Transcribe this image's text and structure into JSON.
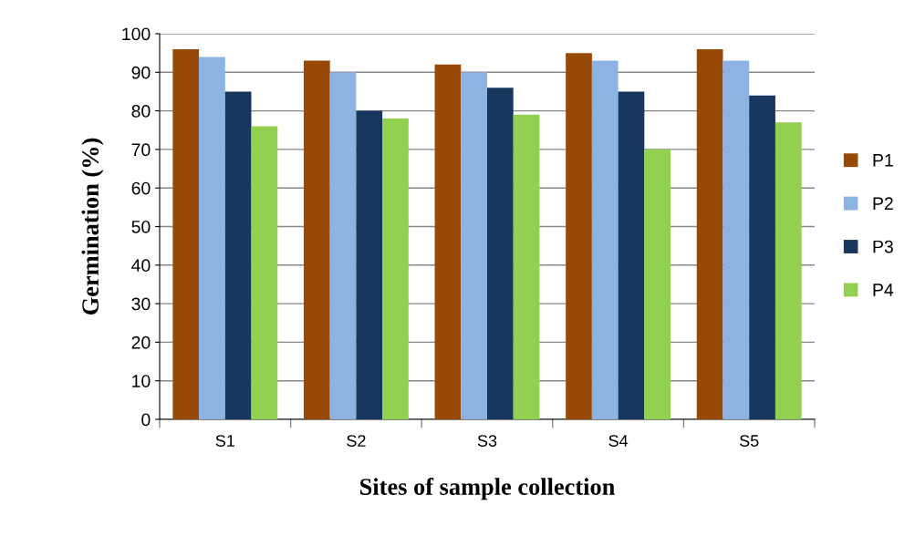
{
  "chart_data": {
    "type": "bar",
    "xlabel": "Sites of sample collection",
    "ylabel": "Germination (%)",
    "categories": [
      "S1",
      "S2",
      "S3",
      "S4",
      "S5"
    ],
    "series": [
      {
        "name": "P1",
        "color": "#984807",
        "values": [
          96,
          93,
          92,
          95,
          96
        ]
      },
      {
        "name": "P2",
        "color": "#8db3e2",
        "values": [
          94,
          90,
          90,
          93,
          93
        ]
      },
      {
        "name": "P3",
        "color": "#17375e",
        "values": [
          85,
          80,
          86,
          85,
          84
        ]
      },
      {
        "name": "P4",
        "color": "#92d050",
        "values": [
          76,
          78,
          79,
          70,
          77
        ]
      }
    ],
    "ylim": [
      0,
      100
    ],
    "yticks": [
      0,
      10,
      20,
      30,
      40,
      50,
      60,
      70,
      80,
      90,
      100
    ],
    "grid": "y",
    "legend": "right"
  }
}
